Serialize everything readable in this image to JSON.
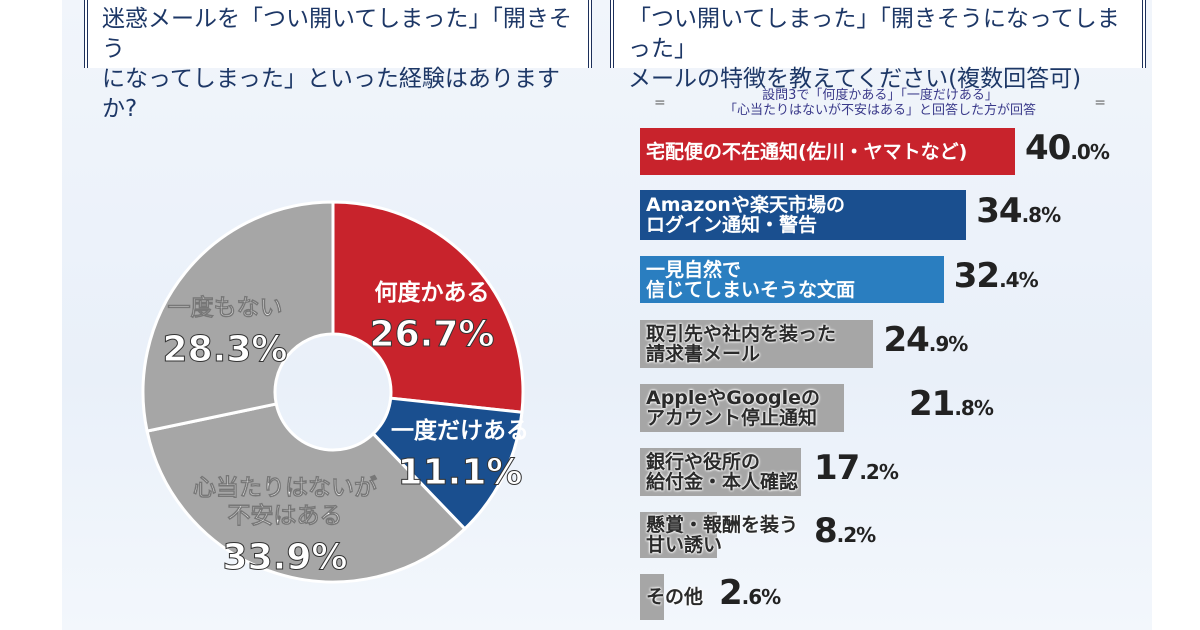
{
  "left_title": [
    "迷惑メールを「つい開いてしまった」「開きそう",
    "になってしまった」といった経験はありますか?"
  ],
  "right_title": [
    "「つい開いてしまった」「開きそうになってしまった」",
    "メールの特徴を教えてください(複数回答可)"
  ],
  "note": {
    "line1": "設問3で「何度かある」「一度だけある」",
    "line2": "「心当たりはないが不安はある」と回答した方が回答",
    "eq": "="
  },
  "colors": {
    "red": "#c8232c",
    "blue": "#1a4f8f",
    "lightblue": "#2a7ec0",
    "gray": "#a6a6a6",
    "text": "#1d3766"
  },
  "chart_data": [
    {
      "type": "pie",
      "donut": true,
      "slices": [
        {
          "label": "何度かある",
          "value": 26.7,
          "color": "#c8232c"
        },
        {
          "label": "一度だけある",
          "value": 11.1,
          "color": "#1a4f8f"
        },
        {
          "label": "心当たりはないが不安はある",
          "value": 33.9,
          "color": "#a6a6a6"
        },
        {
          "label": "一度もない",
          "value": 28.3,
          "color": "#a6a6a6"
        }
      ]
    },
    {
      "type": "bar",
      "orientation": "horizontal",
      "categories": [
        "宅配便の不在通知(佐川・ヤマトなど)",
        "Amazonや楽天市場の\nログイン通知・警告",
        "一見自然で\n信じてしまいそうな文面",
        "取引先や社内を装った\n請求書メール",
        "AppleやGoogleの\nアカウント停止通知",
        "銀行や役所の\n給付金・本人確認",
        "懸賞・報酬を装う\n甘い誘い",
        "その他"
      ],
      "values": [
        40.0,
        34.8,
        32.4,
        24.9,
        21.8,
        17.2,
        8.2,
        2.6
      ],
      "bar_colors": [
        "#c8232c",
        "#1a4f8f",
        "#2a7ec0",
        "#a6a6a6",
        "#a6a6a6",
        "#a6a6a6",
        "#a6a6a6",
        "#a6a6a6"
      ],
      "unit": "%"
    }
  ]
}
